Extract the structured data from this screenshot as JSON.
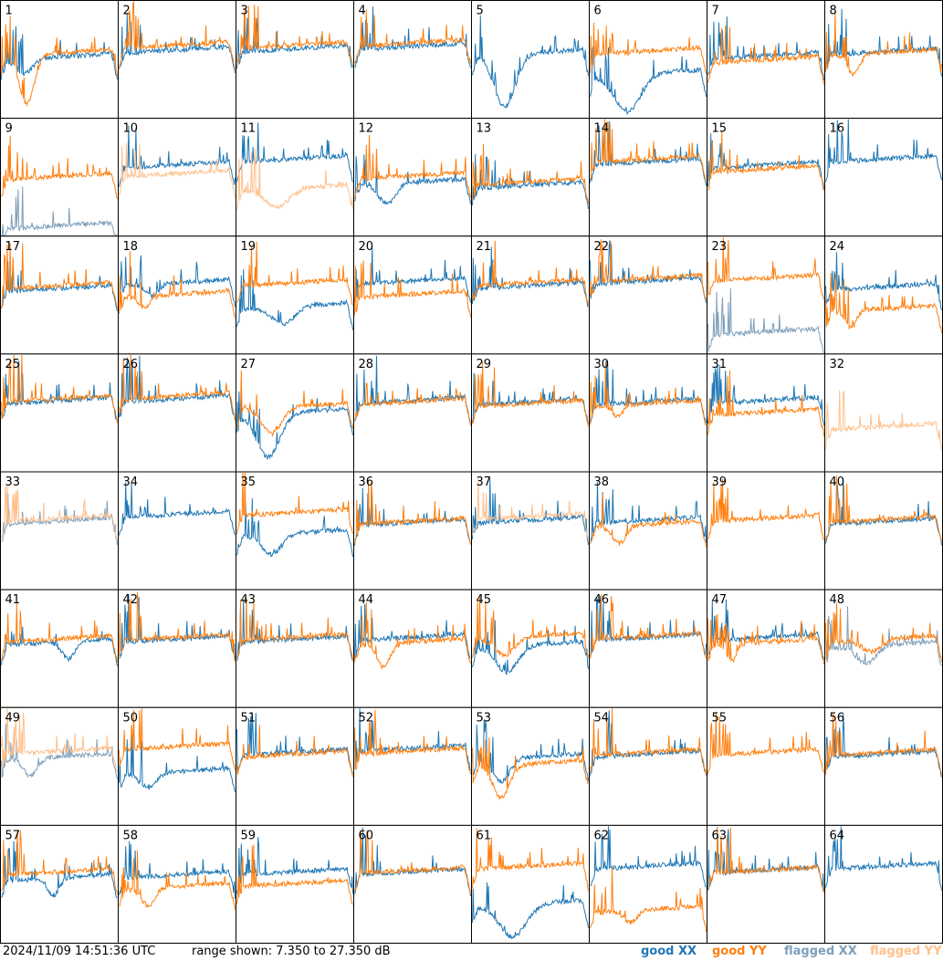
{
  "footer": {
    "timestamp": "2024/11/09 14:51:36 UTC",
    "range_text": "range shown: 7.350 to 27.350 dB"
  },
  "legend": [
    {
      "key": "good_xx",
      "label": "good XX",
      "color": "#1f77b4"
    },
    {
      "key": "good_yy",
      "label": "good YY",
      "color": "#ff7f0e"
    },
    {
      "key": "flagged_xx",
      "label": "flagged XX",
      "color": "#7f9fba"
    },
    {
      "key": "flagged_yy",
      "label": "flagged YY",
      "color": "#ffc08c"
    }
  ],
  "chart_data": {
    "type": "line",
    "grid": {
      "rows": 8,
      "cols": 8
    },
    "ylim": [
      7.35,
      27.35
    ],
    "y_unit": "dB",
    "panel_labels": [
      "1",
      "2",
      "3",
      "4",
      "5",
      "6",
      "7",
      "8",
      "9",
      "10",
      "11",
      "12",
      "13",
      "14",
      "15",
      "16",
      "17",
      "18",
      "19",
      "20",
      "21",
      "22",
      "23",
      "24",
      "25",
      "26",
      "27",
      "28",
      "29",
      "30",
      "31",
      "32",
      "33",
      "34",
      "35",
      "36",
      "37",
      "38",
      "39",
      "40",
      "41",
      "42",
      "43",
      "44",
      "45",
      "46",
      "47",
      "48",
      "49",
      "50",
      "51",
      "52",
      "53",
      "54",
      "55",
      "56",
      "57",
      "58",
      "59",
      "60",
      "61",
      "62",
      "63",
      "64"
    ],
    "series_keys": [
      "good_xx",
      "good_yy",
      "flagged_xx",
      "flagged_yy"
    ],
    "panels": [
      {
        "id": 1,
        "xx": {
          "flag": false,
          "level": 17.8,
          "dip": {
            "at": 0.2,
            "depth": 2.5,
            "width": 0.1
          }
        },
        "yy": {
          "flag": false,
          "level": 18.5,
          "dip": {
            "at": 0.22,
            "depth": 8.5,
            "width": 0.09
          }
        }
      },
      {
        "id": 2,
        "xx": {
          "flag": false,
          "level": 19.0
        },
        "yy": {
          "flag": false,
          "level": 19.8
        }
      },
      {
        "id": 3,
        "xx": {
          "flag": false,
          "level": 19.2
        },
        "yy": {
          "flag": false,
          "level": 19.8
        }
      },
      {
        "id": 4,
        "xx": {
          "flag": false,
          "level": 19.6
        },
        "yy": {
          "flag": false,
          "level": 20.2
        }
      },
      {
        "id": 5,
        "xx": {
          "flag": false,
          "level": 18.5,
          "dip": {
            "at": 0.28,
            "depth": 9.0,
            "width": 0.13
          }
        },
        "yy": {
          "flag": false,
          "level": null
        }
      },
      {
        "id": 6,
        "xx": {
          "flag": false,
          "level": 15.0,
          "dip": {
            "at": 0.32,
            "depth": 6.5,
            "width": 0.16
          }
        },
        "yy": {
          "flag": false,
          "level": 18.8
        }
      },
      {
        "id": 7,
        "xx": {
          "flag": false,
          "level": 18.0
        },
        "yy": {
          "flag": false,
          "level": 17.3
        }
      },
      {
        "id": 8,
        "xx": {
          "flag": false,
          "level": 18.7
        },
        "yy": {
          "flag": false,
          "level": 18.5,
          "dip": {
            "at": 0.24,
            "depth": 3.5,
            "width": 0.07
          }
        }
      },
      {
        "id": 9,
        "xx": {
          "flag": true,
          "level": 9.0
        },
        "yy": {
          "flag": false,
          "level": 17.5
        }
      },
      {
        "id": 10,
        "xx": {
          "flag": false,
          "level": 19.5
        },
        "yy": {
          "flag": true,
          "level": 18.0
        }
      },
      {
        "id": 11,
        "xx": {
          "flag": false,
          "level": 20.5
        },
        "yy": {
          "flag": true,
          "level": 15.5,
          "dip": {
            "at": 0.35,
            "depth": 3.0,
            "width": 0.15
          }
        }
      },
      {
        "id": 12,
        "xx": {
          "flag": false,
          "level": 16.5,
          "dip": {
            "at": 0.28,
            "depth": 3.5,
            "width": 0.1
          }
        },
        "yy": {
          "flag": false,
          "level": 17.6
        }
      },
      {
        "id": 13,
        "xx": {
          "flag": false,
          "level": 16.0
        },
        "yy": {
          "flag": false,
          "level": 16.6
        }
      },
      {
        "id": 14,
        "xx": {
          "flag": false,
          "level": 20.0
        },
        "yy": {
          "flag": false,
          "level": 20.5
        }
      },
      {
        "id": 15,
        "xx": {
          "flag": false,
          "level": 19.5
        },
        "yy": {
          "flag": false,
          "level": 18.8
        }
      },
      {
        "id": 16,
        "xx": {
          "flag": false,
          "level": 20.5
        },
        "yy": {
          "flag": false,
          "level": null
        }
      },
      {
        "id": 17,
        "xx": {
          "flag": false,
          "level": 18.5
        },
        "yy": {
          "flag": false,
          "level": 19.0
        }
      },
      {
        "id": 18,
        "xx": {
          "flag": false,
          "level": 19.5,
          "dip": {
            "at": 0.28,
            "depth": 2.0,
            "width": 0.08
          }
        },
        "yy": {
          "flag": false,
          "level": 17.5,
          "dip": {
            "at": 0.22,
            "depth": 2.0,
            "width": 0.07
          }
        }
      },
      {
        "id": 19,
        "xx": {
          "flag": false,
          "level": 15.5,
          "dip": {
            "at": 0.4,
            "depth": 3.0,
            "width": 0.14
          }
        },
        "yy": {
          "flag": false,
          "level": 19.5
        }
      },
      {
        "id": 20,
        "xx": {
          "flag": false,
          "level": 19.8
        },
        "yy": {
          "flag": false,
          "level": 17.5
        }
      },
      {
        "id": 21,
        "xx": {
          "flag": false,
          "level": 19.0
        },
        "yy": {
          "flag": false,
          "level": 19.5
        }
      },
      {
        "id": 22,
        "xx": {
          "flag": false,
          "level": 19.8
        },
        "yy": {
          "flag": false,
          "level": 20.2
        }
      },
      {
        "id": 23,
        "xx": {
          "flag": true,
          "level": 11.0
        },
        "yy": {
          "flag": false,
          "level": 20.3
        }
      },
      {
        "id": 24,
        "xx": {
          "flag": false,
          "level": 18.8
        },
        "yy": {
          "flag": false,
          "level": 15.0,
          "dip": {
            "at": 0.22,
            "depth": 3.0,
            "width": 0.06
          }
        }
      },
      {
        "id": 25,
        "xx": {
          "flag": false,
          "level": 19.5
        },
        "yy": {
          "flag": false,
          "level": 19.8
        }
      },
      {
        "id": 26,
        "xx": {
          "flag": false,
          "level": 19.8
        },
        "yy": {
          "flag": false,
          "level": 20.3
        }
      },
      {
        "id": 27,
        "xx": {
          "flag": false,
          "level": 17.5,
          "dip": {
            "at": 0.27,
            "depth": 7.5,
            "width": 0.14
          }
        },
        "yy": {
          "flag": false,
          "level": 18.5,
          "dip": {
            "at": 0.3,
            "depth": 4.5,
            "width": 0.12
          }
        }
      },
      {
        "id": 28,
        "xx": {
          "flag": false,
          "level": 19.5
        },
        "yy": {
          "flag": false,
          "level": 19.3
        }
      },
      {
        "id": 29,
        "xx": {
          "flag": false,
          "level": 19.3
        },
        "yy": {
          "flag": false,
          "level": 19.0
        }
      },
      {
        "id": 30,
        "xx": {
          "flag": false,
          "level": 19.3
        },
        "yy": {
          "flag": false,
          "level": 19.0,
          "dip": {
            "at": 0.24,
            "depth": 2.0,
            "width": 0.06
          }
        }
      },
      {
        "id": 31,
        "xx": {
          "flag": false,
          "level": 19.5
        },
        "yy": {
          "flag": false,
          "level": 17.5
        }
      },
      {
        "id": 32,
        "xx": {
          "flag": false,
          "level": null
        },
        "yy": {
          "flag": true,
          "level": 15.0
        }
      },
      {
        "id": 33,
        "xx": {
          "flag": true,
          "level": 19.0
        },
        "yy": {
          "flag": true,
          "level": 19.5
        }
      },
      {
        "id": 34,
        "xx": {
          "flag": false,
          "level": 20.2
        },
        "yy": {
          "flag": false,
          "level": null
        }
      },
      {
        "id": 35,
        "xx": {
          "flag": false,
          "level": 17.0,
          "dip": {
            "at": 0.3,
            "depth": 3.5,
            "width": 0.12
          }
        },
        "yy": {
          "flag": false,
          "level": 20.5
        }
      },
      {
        "id": 36,
        "xx": {
          "flag": false,
          "level": 18.8
        },
        "yy": {
          "flag": false,
          "level": 19.0
        }
      },
      {
        "id": 37,
        "xx": {
          "flag": false,
          "level": 19.2
        },
        "yy": {
          "flag": true,
          "level": 19.8
        }
      },
      {
        "id": 38,
        "xx": {
          "flag": false,
          "level": 19.2
        },
        "yy": {
          "flag": false,
          "level": 18.5,
          "dip": {
            "at": 0.25,
            "depth": 3.0,
            "width": 0.08
          }
        }
      },
      {
        "id": 39,
        "xx": {
          "flag": false,
          "level": null
        },
        "yy": {
          "flag": false,
          "level": 19.5
        }
      },
      {
        "id": 40,
        "xx": {
          "flag": false,
          "level": 19.0
        },
        "yy": {
          "flag": false,
          "level": 19.3
        }
      },
      {
        "id": 41,
        "xx": {
          "flag": false,
          "level": 18.5,
          "dip": {
            "at": 0.58,
            "depth": 3.0,
            "width": 0.08
          }
        },
        "yy": {
          "flag": false,
          "level": 19.0
        }
      },
      {
        "id": 42,
        "xx": {
          "flag": false,
          "level": 19.0
        },
        "yy": {
          "flag": false,
          "level": 19.3
        }
      },
      {
        "id": 43,
        "xx": {
          "flag": false,
          "level": 19.0
        },
        "yy": {
          "flag": false,
          "level": 19.3
        }
      },
      {
        "id": 44,
        "xx": {
          "flag": false,
          "level": 19.3
        },
        "yy": {
          "flag": false,
          "level": 18.5,
          "dip": {
            "at": 0.25,
            "depth": 4.0,
            "width": 0.08
          }
        }
      },
      {
        "id": 45,
        "xx": {
          "flag": false,
          "level": 18.0,
          "dip": {
            "at": 0.3,
            "depth": 4.5,
            "width": 0.13
          }
        },
        "yy": {
          "flag": false,
          "level": 19.5,
          "dip": {
            "at": 0.28,
            "depth": 3.0,
            "width": 0.12
          }
        }
      },
      {
        "id": 46,
        "xx": {
          "flag": false,
          "level": 19.3
        },
        "yy": {
          "flag": false,
          "level": 19.5
        }
      },
      {
        "id": 47,
        "xx": {
          "flag": false,
          "level": 19.3
        },
        "yy": {
          "flag": false,
          "level": 18.5,
          "dip": {
            "at": 0.2,
            "depth": 3.0,
            "width": 0.06
          }
        }
      },
      {
        "id": 48,
        "xx": {
          "flag": true,
          "level": 18.0,
          "dip": {
            "at": 0.35,
            "depth": 3.0,
            "width": 0.12
          }
        },
        "yy": {
          "flag": false,
          "level": 19.0,
          "dip": {
            "at": 0.4,
            "depth": 2.0,
            "width": 0.12
          }
        }
      },
      {
        "id": 49,
        "xx": {
          "flag": true,
          "level": 19.0,
          "dip": {
            "at": 0.25,
            "depth": 3.0,
            "width": 0.08
          }
        },
        "yy": {
          "flag": true,
          "level": 20.0
        }
      },
      {
        "id": 50,
        "xx": {
          "flag": false,
          "level": 16.5,
          "dip": {
            "at": 0.25,
            "depth": 2.5,
            "width": 0.1
          }
        },
        "yy": {
          "flag": false,
          "level": 20.8
        }
      },
      {
        "id": 51,
        "xx": {
          "flag": false,
          "level": 19.8
        },
        "yy": {
          "flag": false,
          "level": 19.5
        }
      },
      {
        "id": 52,
        "xx": {
          "flag": false,
          "level": 20.5
        },
        "yy": {
          "flag": false,
          "level": 20.0
        }
      },
      {
        "id": 53,
        "xx": {
          "flag": false,
          "level": 19.0,
          "dip": {
            "at": 0.25,
            "depth": 4.0,
            "width": 0.1
          }
        },
        "yy": {
          "flag": false,
          "level": 17.8,
          "dip": {
            "at": 0.25,
            "depth": 5.5,
            "width": 0.1
          }
        }
      },
      {
        "id": 54,
        "xx": {
          "flag": false,
          "level": 19.5
        },
        "yy": {
          "flag": false,
          "level": 19.8
        }
      },
      {
        "id": 55,
        "xx": {
          "flag": false,
          "level": null
        },
        "yy": {
          "flag": false,
          "level": 19.8
        }
      },
      {
        "id": 56,
        "xx": {
          "flag": false,
          "level": 19.5
        },
        "yy": {
          "flag": false,
          "level": 19.8
        }
      },
      {
        "id": 57,
        "xx": {
          "flag": false,
          "level": 18.5,
          "dip": {
            "at": 0.45,
            "depth": 3.0,
            "width": 0.07
          }
        },
        "yy": {
          "flag": false,
          "level": 19.5
        }
      },
      {
        "id": 58,
        "xx": {
          "flag": false,
          "level": 19.0
        },
        "yy": {
          "flag": false,
          "level": 17.0,
          "dip": {
            "at": 0.25,
            "depth": 3.0,
            "width": 0.08
          }
        }
      },
      {
        "id": 59,
        "xx": {
          "flag": false,
          "level": 19.5
        },
        "yy": {
          "flag": false,
          "level": 17.5
        }
      },
      {
        "id": 60,
        "xx": {
          "flag": false,
          "level": 19.5
        },
        "yy": {
          "flag": false,
          "level": 19.8
        }
      },
      {
        "id": 61,
        "xx": {
          "flag": false,
          "level": 14.0,
          "dip": {
            "at": 0.35,
            "depth": 5.5,
            "width": 0.16
          }
        },
        "yy": {
          "flag": false,
          "level": 20.5
        }
      },
      {
        "id": 62,
        "xx": {
          "flag": false,
          "level": 20.5
        },
        "yy": {
          "flag": false,
          "level": 13.0,
          "dip": {
            "at": 0.35,
            "depth": 2.0,
            "width": 0.08
          }
        }
      },
      {
        "id": 63,
        "xx": {
          "flag": false,
          "level": 19.8
        },
        "yy": {
          "flag": false,
          "level": 19.8
        }
      },
      {
        "id": 64,
        "xx": {
          "flag": false,
          "level": 20.5
        },
        "yy": {
          "flag": false,
          "level": null
        }
      }
    ]
  }
}
